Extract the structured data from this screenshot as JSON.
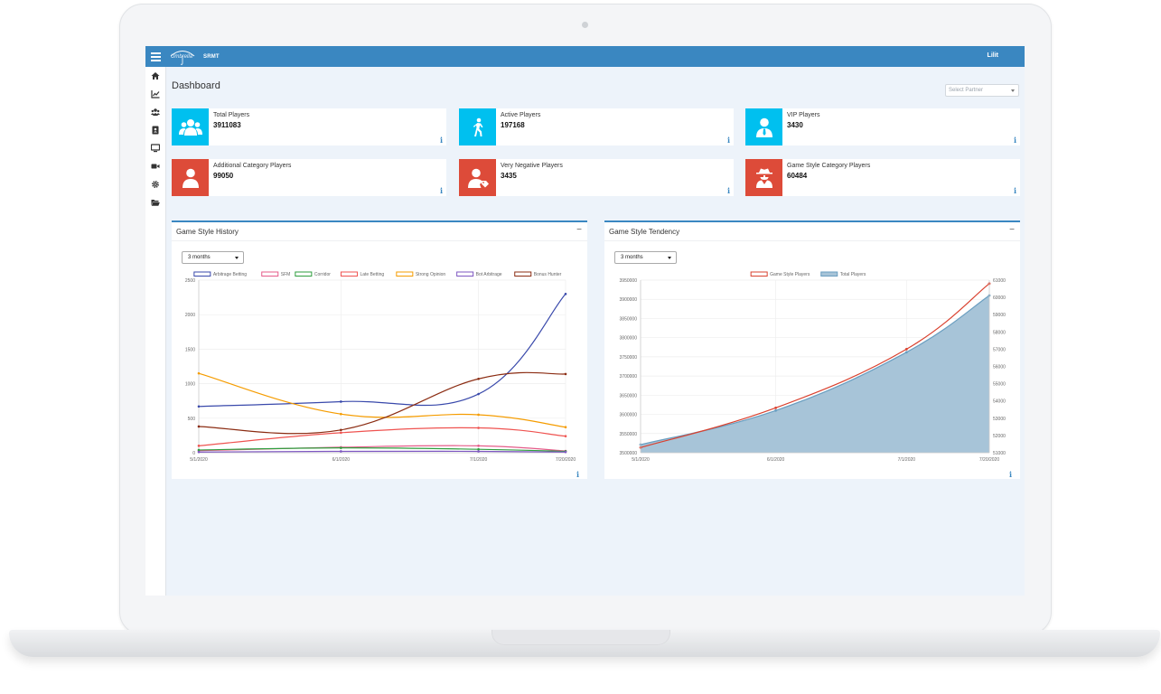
{
  "topbar": {
    "logo_text": "Umbrella",
    "brand": "SRMT",
    "user": "Lilit"
  },
  "sidebar": {
    "items": [
      {
        "icon": "home-icon"
      },
      {
        "icon": "chart-line-icon"
      },
      {
        "icon": "users-icon"
      },
      {
        "icon": "contact-card-icon"
      },
      {
        "icon": "monitor-icon"
      },
      {
        "icon": "video-camera-icon"
      },
      {
        "icon": "gear-icon"
      },
      {
        "icon": "folder-open-icon"
      }
    ]
  },
  "page": {
    "title": "Dashboard",
    "partner_placeholder": "Select Partner"
  },
  "colors": {
    "cyan": "#00c0ef",
    "red": "#dd4b39",
    "accent": "#3a87c1"
  },
  "cards": [
    {
      "label": "Total Players",
      "value": "3911083",
      "icon": "users-group-icon",
      "color": "#00c0ef",
      "info": "i"
    },
    {
      "label": "Active Players",
      "value": "197168",
      "icon": "walking-person-icon",
      "color": "#00c0ef",
      "info": "i"
    },
    {
      "label": "VIP Players",
      "value": "3430",
      "icon": "user-tie-icon",
      "color": "#00c0ef",
      "info": "i"
    },
    {
      "label": "Additional Category Players",
      "value": "99050",
      "icon": "user-icon",
      "color": "#dd4b39",
      "info": "i"
    },
    {
      "label": "Very Negative Players",
      "value": "3435",
      "icon": "user-tag-icon",
      "color": "#dd4b39",
      "info": "i"
    },
    {
      "label": "Game Style Category Players",
      "value": "60484",
      "icon": "user-secret-icon",
      "color": "#dd4b39",
      "info": "i"
    }
  ],
  "panels": {
    "history": {
      "title": "Game Style History",
      "range": "3 months",
      "collapse": "−",
      "info": "i"
    },
    "tendency": {
      "title": "Game Style Tendency",
      "range": "3 months",
      "collapse": "−",
      "info": "i"
    }
  },
  "chart_data": [
    {
      "type": "line",
      "x": [
        "5/1/2020",
        "6/1/2020",
        "7/1/2020",
        "7/20/2020"
      ],
      "ylim": [
        0,
        2500
      ],
      "yticks": [
        0,
        500,
        1000,
        1500,
        2000,
        2500
      ],
      "legend_position": "top",
      "grid": true,
      "series": [
        {
          "name": "Arbitrage Betting",
          "color": "#3949ab",
          "values": [
            670,
            740,
            850,
            2300
          ]
        },
        {
          "name": "SFM",
          "color": "#e55c8a",
          "values": [
            30,
            80,
            100,
            25
          ]
        },
        {
          "name": "Corridor",
          "color": "#2e9e3e",
          "values": [
            40,
            70,
            50,
            20
          ]
        },
        {
          "name": "Late Betting",
          "color": "#ef5350",
          "values": [
            100,
            290,
            360,
            240
          ]
        },
        {
          "name": "Strong Opinion",
          "color": "#f59c00",
          "values": [
            1150,
            560,
            550,
            370
          ]
        },
        {
          "name": "Bot Arbitrage",
          "color": "#7e57c2",
          "values": [
            10,
            20,
            20,
            10
          ]
        },
        {
          "name": "Bonus Hunter",
          "color": "#8b2c12",
          "values": [
            380,
            330,
            1070,
            1140
          ]
        }
      ]
    },
    {
      "type": "area",
      "x": [
        "5/1/2020",
        "6/1/2020",
        "7/1/2020",
        "7/20/2020"
      ],
      "ylim_left": [
        3500000,
        3950000
      ],
      "yticks_left": [
        3500000,
        3550000,
        3600000,
        3650000,
        3700000,
        3750000,
        3800000,
        3850000,
        3900000,
        3950000
      ],
      "ylim_right": [
        51000,
        61000
      ],
      "yticks_right": [
        51000,
        52000,
        53000,
        54000,
        55000,
        56000,
        57000,
        58000,
        59000,
        60000,
        61000
      ],
      "legend_position": "top",
      "grid": true,
      "series": [
        {
          "name": "Game Style Players",
          "axis": "right",
          "type": "line",
          "color": "#d9412f",
          "values": [
            51300,
            53600,
            57000,
            60800
          ]
        },
        {
          "name": "Total Players",
          "axis": "left",
          "type": "area",
          "color": "#6a9ec0",
          "fill": "#a7c4d8",
          "values": [
            3521000,
            3610000,
            3762000,
            3910000
          ]
        }
      ]
    }
  ]
}
